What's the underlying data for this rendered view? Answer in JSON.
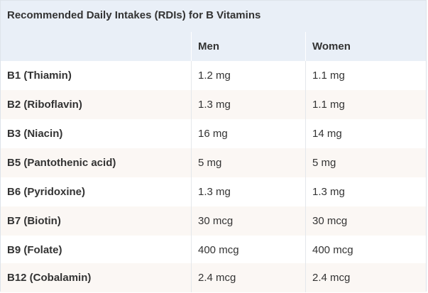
{
  "table": {
    "caption": "Recommended Daily Intakes (RDIs) for B Vitamins",
    "headers": [
      "",
      "Men",
      "Women"
    ],
    "rows": [
      {
        "vitamin": "B1 (Thiamin)",
        "men": "1.2 mg",
        "women": "1.1 mg"
      },
      {
        "vitamin": "B2 (Riboflavin)",
        "men": "1.3 mg",
        "women": "1.1 mg"
      },
      {
        "vitamin": "B3 (Niacin)",
        "men": "16 mg",
        "women": "14 mg"
      },
      {
        "vitamin": "B5 (Pantothenic acid)",
        "men": "5 mg",
        "women": "5 mg"
      },
      {
        "vitamin": "B6 (Pyridoxine)",
        "men": "1.3 mg",
        "women": "1.3 mg"
      },
      {
        "vitamin": "B7 (Biotin)",
        "men": "30 mcg",
        "women": "30 mcg"
      },
      {
        "vitamin": "B9 (Folate)",
        "men": "400 mcg",
        "women": "400 mcg"
      },
      {
        "vitamin": "B12 (Cobalamin)",
        "men": "2.4 mcg",
        "women": "2.4 mcg"
      }
    ]
  }
}
